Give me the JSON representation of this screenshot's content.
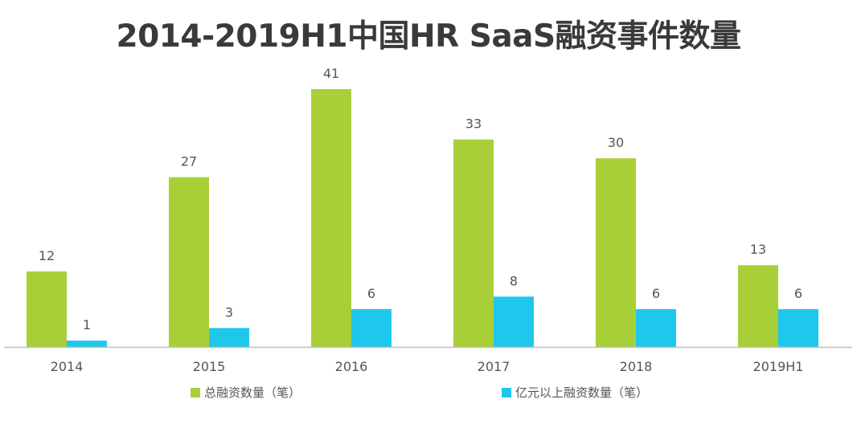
{
  "chart_data": {
    "type": "bar",
    "title": "2014-2019H1中国HR SaaS融资事件数量",
    "categories": [
      "2014",
      "2015",
      "2016",
      "2017",
      "2018",
      "2019H1"
    ],
    "series": [
      {
        "name": "总融资数量（笔）",
        "color": "#a9cf38",
        "values": [
          12,
          27,
          41,
          33,
          30,
          13
        ]
      },
      {
        "name": "亿元以上融资数量（笔）",
        "color": "#1ec7ec",
        "values": [
          1,
          3,
          6,
          8,
          6,
          6
        ]
      }
    ],
    "xlabel": "",
    "ylabel": "",
    "ylim": [
      0,
      41
    ],
    "grid": false,
    "legend": "bottom"
  }
}
